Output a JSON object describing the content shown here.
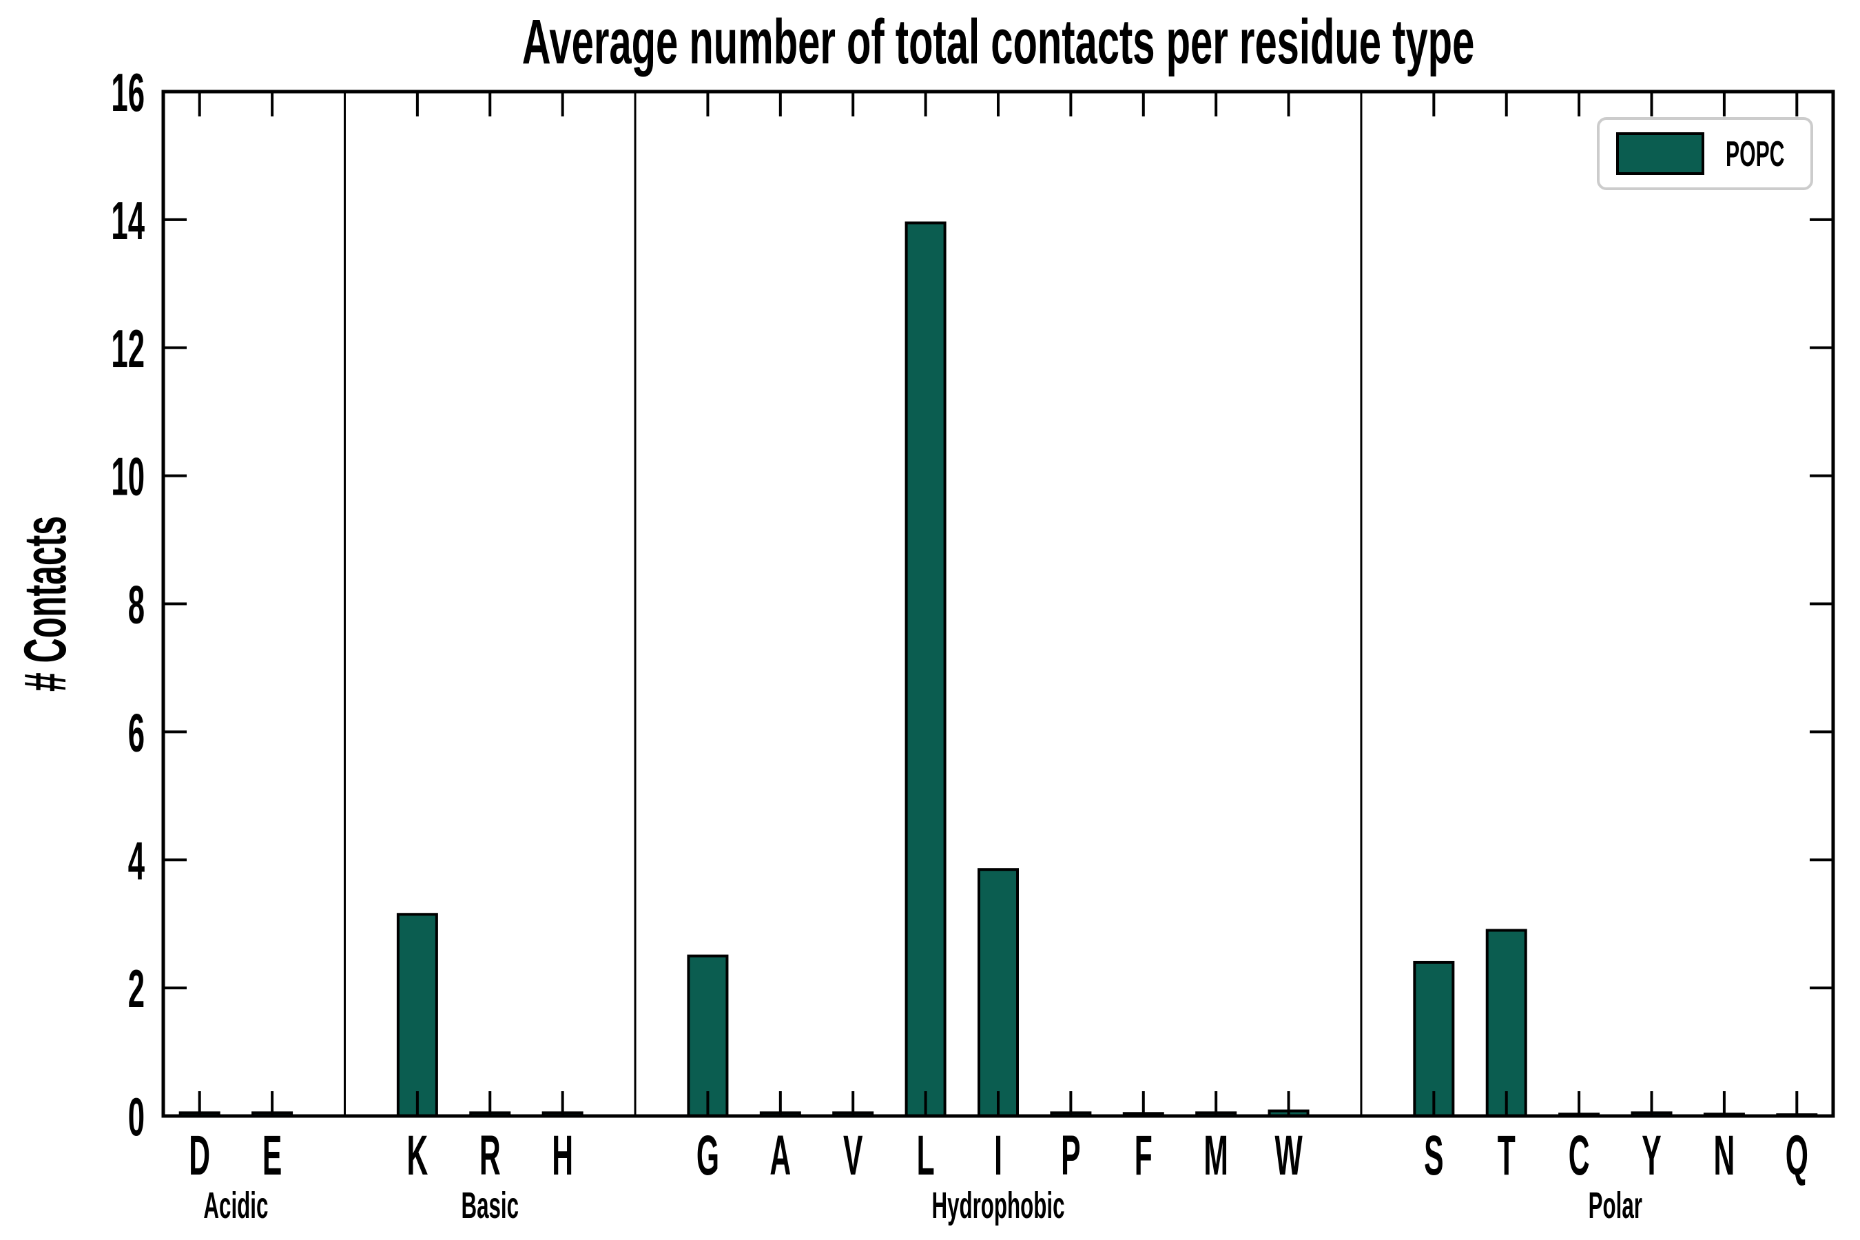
{
  "figure": {
    "background": "#ffffff"
  },
  "colors": {
    "bar_fill": "#0b5d50",
    "bar_edge": "#000000",
    "axis": "#000000",
    "separator": "#000000",
    "legend_border": "#cccccc",
    "legend_fill": "#ffffff",
    "text": "#000000"
  },
  "chart_data": {
    "type": "bar",
    "title": "Average number of total contacts per residue type",
    "xlabel": "",
    "ylabel": "# Contacts",
    "ylim": [
      0,
      16
    ],
    "ytick_step": 2,
    "yticks": [
      0,
      2,
      4,
      6,
      8,
      10,
      12,
      14,
      16
    ],
    "grid": false,
    "legend": [
      "POPC"
    ],
    "legend_position": "upper right",
    "groups": [
      {
        "label": "Acidic",
        "categories": [
          "D",
          "E"
        ],
        "values": [
          0.05,
          0.05
        ]
      },
      {
        "label": "Basic",
        "categories": [
          "K",
          "R",
          "H"
        ],
        "values": [
          3.15,
          0.05,
          0.05
        ]
      },
      {
        "label": "Hydrophobic",
        "categories": [
          "G",
          "A",
          "V",
          "L",
          "I",
          "P",
          "F",
          "M",
          "W"
        ],
        "values": [
          2.5,
          0.05,
          0.05,
          13.95,
          3.85,
          0.05,
          0.04,
          0.05,
          0.08
        ]
      },
      {
        "label": "Polar",
        "categories": [
          "S",
          "T",
          "C",
          "Y",
          "N",
          "Q"
        ],
        "values": [
          2.4,
          2.9,
          0.03,
          0.05,
          0.03,
          0.02
        ]
      }
    ]
  }
}
